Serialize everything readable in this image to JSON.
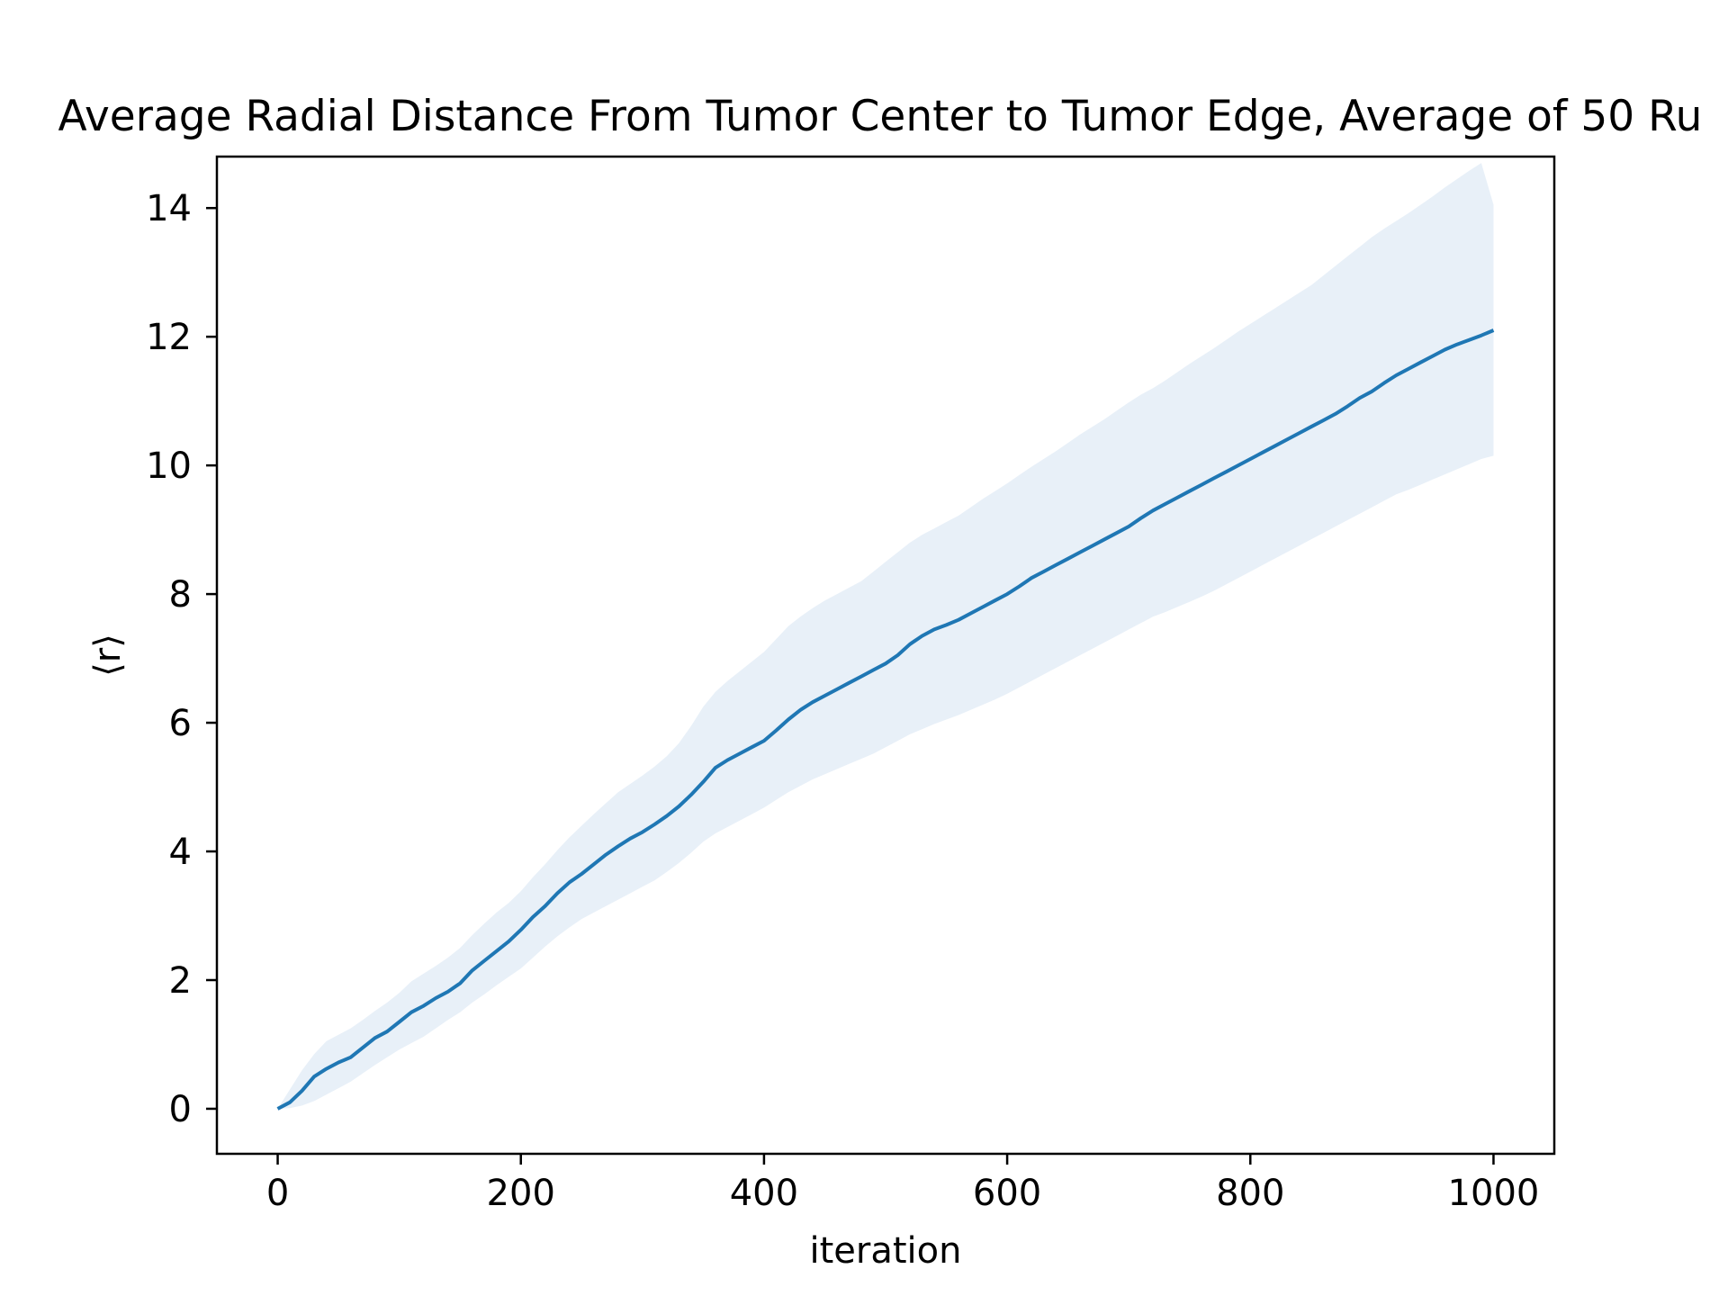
{
  "chart_data": {
    "type": "line",
    "title": "Average Radial Distance From Tumor Center to Tumor Edge, Average of 50 Ru",
    "xlabel": "iteration",
    "ylabel": "⟨r⟩",
    "xlim": [
      -50,
      1050
    ],
    "ylim": [
      -0.7,
      14.8
    ],
    "xticks": [
      0,
      200,
      400,
      600,
      800,
      1000
    ],
    "xtick_labels": [
      "0",
      "200",
      "400",
      "600",
      "800",
      "1000"
    ],
    "yticks": [
      0,
      2,
      4,
      6,
      8,
      10,
      12,
      14
    ],
    "ytick_labels": [
      "0",
      "2",
      "4",
      "6",
      "8",
      "10",
      "12",
      "14"
    ],
    "grid": false,
    "legend": "none",
    "series": [
      {
        "x": [
          0,
          10,
          20,
          30,
          40,
          50,
          60,
          70,
          80,
          90,
          100,
          110,
          120,
          130,
          140,
          150,
          160,
          170,
          180,
          190,
          200,
          210,
          220,
          230,
          240,
          250,
          260,
          270,
          280,
          290,
          300,
          310,
          320,
          330,
          340,
          350,
          360,
          370,
          380,
          390,
          400,
          410,
          420,
          430,
          440,
          450,
          460,
          470,
          480,
          490,
          500,
          510,
          520,
          530,
          540,
          550,
          560,
          570,
          580,
          590,
          600,
          610,
          620,
          630,
          640,
          650,
          660,
          670,
          680,
          690,
          700,
          710,
          720,
          730,
          740,
          750,
          760,
          770,
          780,
          790,
          800,
          810,
          820,
          830,
          840,
          850,
          860,
          870,
          880,
          890,
          900,
          910,
          920,
          930,
          940,
          950,
          960,
          970,
          980,
          990,
          1000
        ],
        "y": [
          0,
          0.1,
          0.28,
          0.5,
          0.62,
          0.72,
          0.8,
          0.95,
          1.1,
          1.2,
          1.35,
          1.5,
          1.6,
          1.72,
          1.82,
          1.95,
          2.15,
          2.3,
          2.45,
          2.6,
          2.78,
          2.98,
          3.15,
          3.35,
          3.52,
          3.65,
          3.8,
          3.95,
          4.08,
          4.2,
          4.3,
          4.42,
          4.55,
          4.7,
          4.88,
          5.08,
          5.3,
          5.42,
          5.52,
          5.62,
          5.72,
          5.88,
          6.05,
          6.2,
          6.32,
          6.42,
          6.52,
          6.62,
          6.72,
          6.82,
          6.92,
          7.05,
          7.22,
          7.35,
          7.45,
          7.52,
          7.6,
          7.7,
          7.8,
          7.9,
          8.0,
          8.12,
          8.25,
          8.35,
          8.45,
          8.55,
          8.65,
          8.75,
          8.85,
          8.95,
          9.05,
          9.18,
          9.3,
          9.4,
          9.5,
          9.6,
          9.7,
          9.8,
          9.9,
          10.0,
          10.1,
          10.2,
          10.3,
          10.4,
          10.5,
          10.6,
          10.7,
          10.8,
          10.92,
          11.05,
          11.15,
          11.28,
          11.4,
          11.5,
          11.6,
          11.7,
          11.8,
          11.88,
          11.95,
          12.02,
          12.1
        ],
        "y_lower": [
          0,
          0.01,
          0.05,
          0.12,
          0.22,
          0.32,
          0.42,
          0.55,
          0.68,
          0.8,
          0.92,
          1.02,
          1.12,
          1.25,
          1.38,
          1.5,
          1.65,
          1.78,
          1.92,
          2.05,
          2.18,
          2.35,
          2.52,
          2.68,
          2.82,
          2.95,
          3.05,
          3.15,
          3.25,
          3.35,
          3.45,
          3.55,
          3.68,
          3.82,
          3.98,
          4.15,
          4.28,
          4.38,
          4.48,
          4.58,
          4.68,
          4.8,
          4.92,
          5.02,
          5.12,
          5.2,
          5.28,
          5.36,
          5.44,
          5.52,
          5.62,
          5.72,
          5.82,
          5.9,
          5.98,
          6.05,
          6.12,
          6.2,
          6.28,
          6.36,
          6.45,
          6.55,
          6.65,
          6.75,
          6.85,
          6.95,
          7.05,
          7.15,
          7.25,
          7.35,
          7.45,
          7.55,
          7.65,
          7.72,
          7.8,
          7.88,
          7.96,
          8.05,
          8.15,
          8.25,
          8.35,
          8.45,
          8.55,
          8.65,
          8.75,
          8.85,
          8.95,
          9.05,
          9.15,
          9.25,
          9.35,
          9.45,
          9.55,
          9.62,
          9.7,
          9.78,
          9.86,
          9.94,
          10.02,
          10.1,
          10.15
        ],
        "y_upper": [
          0,
          0.3,
          0.6,
          0.85,
          1.05,
          1.15,
          1.25,
          1.38,
          1.52,
          1.65,
          1.8,
          1.98,
          2.1,
          2.22,
          2.35,
          2.5,
          2.7,
          2.88,
          3.05,
          3.2,
          3.38,
          3.6,
          3.8,
          4.02,
          4.22,
          4.4,
          4.58,
          4.75,
          4.92,
          5.05,
          5.18,
          5.32,
          5.48,
          5.68,
          5.95,
          6.25,
          6.48,
          6.65,
          6.8,
          6.95,
          7.1,
          7.3,
          7.5,
          7.65,
          7.78,
          7.9,
          8.0,
          8.1,
          8.2,
          8.35,
          8.5,
          8.65,
          8.8,
          8.92,
          9.02,
          9.12,
          9.22,
          9.35,
          9.48,
          9.6,
          9.72,
          9.85,
          9.98,
          10.1,
          10.22,
          10.35,
          10.48,
          10.6,
          10.72,
          10.85,
          10.98,
          11.1,
          11.2,
          11.32,
          11.45,
          11.58,
          11.7,
          11.82,
          11.95,
          12.08,
          12.2,
          12.32,
          12.44,
          12.56,
          12.68,
          12.8,
          12.95,
          13.1,
          13.25,
          13.4,
          13.55,
          13.68,
          13.8,
          13.92,
          14.05,
          14.18,
          14.32,
          14.45,
          14.58,
          14.7,
          14.05
        ]
      }
    ],
    "colors": {
      "line": "#1f77b4",
      "band": "#e8f0f8",
      "axes": "#000000"
    }
  }
}
